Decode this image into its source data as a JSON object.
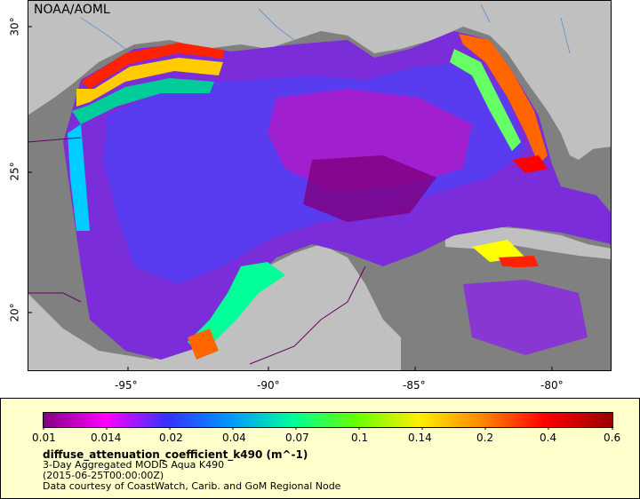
{
  "map": {
    "credit": "NOAA/AOML",
    "lon_range": [
      -98,
      -78
    ],
    "lat_range": [
      18,
      31
    ],
    "lon_ticks": [
      "-95°",
      "-90°",
      "-85°",
      "-80°"
    ],
    "lat_ticks": [
      "30°",
      "25°",
      "20°"
    ],
    "colors": {
      "land": "#c0c0c0",
      "nodata": "#808080",
      "rivers": "#6699cc",
      "borders": "#660066"
    }
  },
  "legend": {
    "tick_labels": [
      "0.01",
      "0.014",
      "0.02",
      "0.04",
      "0.07",
      "0.1",
      "0.14",
      "0.2",
      "0.4",
      "0.6"
    ],
    "variable": "diffuse_attenuation_coefficient_k490 (m^-1)",
    "product": "3-Day Aggregated MODIS Aqua K490",
    "time": "(2015-06-25T00:00:00Z)",
    "source": "Data courtesy of CoastWatch, Carib. and GoM Regional Node",
    "colormap": [
      "#800080",
      "#ff00ff",
      "#3333ff",
      "#0099ff",
      "#00ff66",
      "#66ff00",
      "#ffff00",
      "#ff6600",
      "#ff0000",
      "#990000"
    ]
  }
}
